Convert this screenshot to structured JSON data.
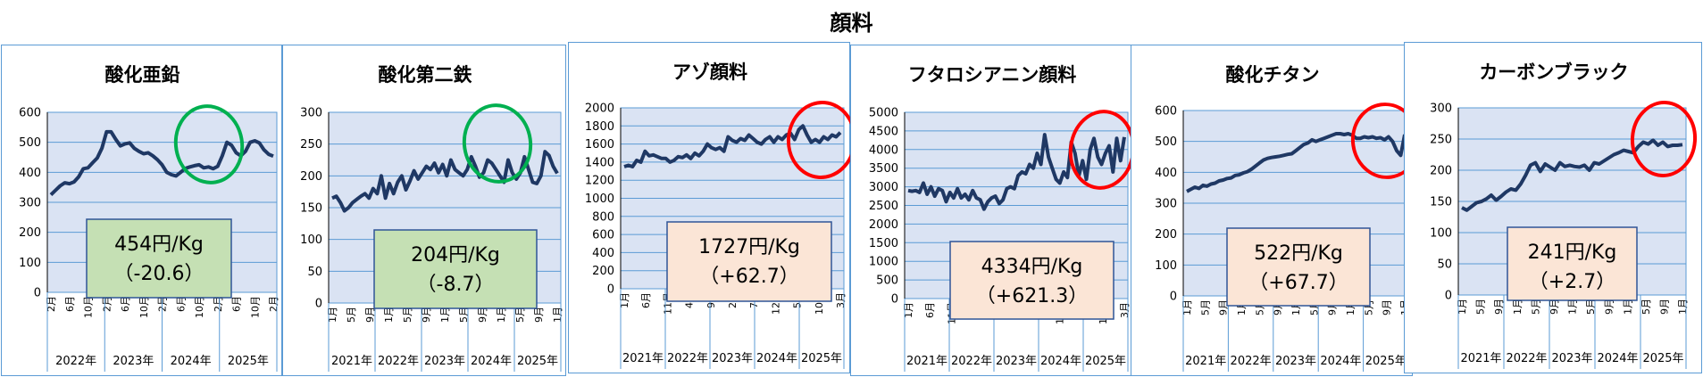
{
  "title": "顔料",
  "colors": {
    "plot_bg": "#dae3f3",
    "line": "#1f3864",
    "grid": "#5b9bd5",
    "green_box": "#c5e0b4",
    "peach_box": "#fbe5d6",
    "box_border": "#2f5597",
    "green_ring": "#00b050",
    "red_ring": "#ff0000"
  },
  "chart_data": [
    {
      "type": "line",
      "title": "酸化亜鉛",
      "ylim": [
        0,
        600
      ],
      "yticks": [
        "0",
        "100",
        "200",
        "300",
        "400",
        "500",
        "600"
      ],
      "xtick_labels": [
        "2月",
        "6月",
        "10月",
        "2月",
        "6月",
        "10月",
        "2月",
        "6月",
        "10月",
        "2月",
        "6月",
        "10月",
        "2月"
      ],
      "years": [
        "2022年",
        "2023年",
        "2024年",
        "2025年"
      ],
      "price": "454円/Kg",
      "change": "（-20.6）",
      "box": "green",
      "ring": "green",
      "values": [
        325,
        340,
        355,
        365,
        362,
        368,
        385,
        412,
        415,
        432,
        448,
        480,
        535,
        535,
        510,
        488,
        495,
        498,
        480,
        470,
        462,
        465,
        455,
        442,
        425,
        400,
        392,
        388,
        400,
        413,
        418,
        422,
        425,
        415,
        418,
        412,
        420,
        455,
        500,
        490,
        465,
        455,
        470,
        500,
        505,
        498,
        475,
        460,
        454
      ]
    },
    {
      "type": "line",
      "title": "酸化第二鉄",
      "ylim": [
        0,
        300
      ],
      "yticks": [
        "0",
        "50",
        "100",
        "150",
        "200",
        "250",
        "300"
      ],
      "xtick_labels": [
        "1月",
        "5月",
        "9月",
        "1月",
        "5月",
        "9月",
        "1月",
        "5月",
        "9月",
        "1月",
        "5月",
        "9月",
        "1月"
      ],
      "years": [
        "2021年",
        "2022年",
        "2023年",
        "2024年",
        "2025年"
      ],
      "price": "204円/Kg",
      "change": "（-8.7）",
      "box": "green",
      "ring": "green",
      "values": [
        165,
        168,
        158,
        145,
        150,
        158,
        163,
        168,
        172,
        165,
        180,
        172,
        200,
        165,
        188,
        172,
        190,
        200,
        178,
        192,
        208,
        195,
        205,
        215,
        210,
        220,
        205,
        218,
        200,
        225,
        210,
        205,
        200,
        210,
        230,
        215,
        198,
        205,
        225,
        220,
        210,
        200,
        190,
        225,
        205,
        195,
        205,
        230,
        210,
        190,
        188,
        200,
        238,
        232,
        215,
        204
      ]
    },
    {
      "type": "line",
      "title": "アゾ顔料",
      "ylim": [
        0,
        2000
      ],
      "yticks": [
        "0",
        "200",
        "400",
        "600",
        "800",
        "1000",
        "1200",
        "1400",
        "1600",
        "1800",
        "2000"
      ],
      "xtick_labels": [
        "1月",
        "6月",
        "11月",
        "4月",
        "9月",
        "2月",
        "7月",
        "12月",
        "5月",
        "10月",
        "3月"
      ],
      "years": [
        "2021年",
        "2022年",
        "2023年",
        "2024年",
        "2025年"
      ],
      "price": "1727円/Kg",
      "change": "（+62.7）",
      "box": "peach",
      "ring": "red",
      "values": [
        1350,
        1365,
        1350,
        1420,
        1400,
        1520,
        1470,
        1480,
        1460,
        1440,
        1440,
        1400,
        1420,
        1460,
        1450,
        1480,
        1440,
        1500,
        1470,
        1520,
        1600,
        1560,
        1540,
        1560,
        1520,
        1680,
        1640,
        1620,
        1660,
        1640,
        1700,
        1660,
        1620,
        1600,
        1650,
        1680,
        1620,
        1680,
        1650,
        1700,
        1720,
        1650,
        1760,
        1800,
        1700,
        1620,
        1650,
        1620,
        1680,
        1650,
        1700,
        1680,
        1727
      ]
    },
    {
      "type": "line",
      "title": "フタロシアニン顔料",
      "ylim": [
        0,
        5000
      ],
      "yticks": [
        "0",
        "500",
        "1000",
        "1500",
        "2000",
        "2500",
        "3000",
        "3500",
        "4000",
        "4500",
        "5000"
      ],
      "xtick_labels": [
        "1月",
        "6月",
        "11月",
        "4月",
        "9月",
        "2月",
        "7月",
        "12月",
        "5月",
        "10月",
        "3月"
      ],
      "years": [
        "2021年",
        "2022年",
        "2023年",
        "2024年",
        "2025年"
      ],
      "price": "4334円/Kg",
      "change": "（+621.3）",
      "box": "peach",
      "ring": "red",
      "values": [
        2900,
        2880,
        2900,
        2850,
        3100,
        2800,
        3000,
        2750,
        2950,
        2900,
        2600,
        2850,
        2700,
        2950,
        2700,
        2800,
        2650,
        2900,
        2700,
        2650,
        2400,
        2600,
        2700,
        2750,
        2550,
        2650,
        2950,
        3000,
        2950,
        3300,
        3400,
        3350,
        3600,
        3500,
        3900,
        3600,
        4400,
        3800,
        3500,
        3200,
        3100,
        3400,
        3250,
        4200,
        3900,
        3300,
        3700,
        3200,
        4000,
        4300,
        3800,
        3600,
        3900,
        4100,
        3400,
        4300,
        3700,
        4334
      ]
    },
    {
      "type": "line",
      "title": "酸化チタン",
      "ylim": [
        0,
        600
      ],
      "yticks": [
        "0",
        "100",
        "200",
        "300",
        "400",
        "500",
        "600"
      ],
      "xtick_labels": [
        "1月",
        "5月",
        "9月",
        "1月",
        "5月",
        "9月",
        "1月",
        "5月",
        "9月",
        "1月",
        "5月",
        "9月",
        "1月"
      ],
      "years": [
        "2021年",
        "2022年",
        "2023年",
        "2024年",
        "2025年"
      ],
      "price": "522円/Kg",
      "change": "（+67.7）",
      "box": "peach",
      "ring": "red",
      "values": [
        338,
        345,
        352,
        348,
        358,
        355,
        362,
        365,
        372,
        375,
        380,
        382,
        390,
        392,
        398,
        402,
        410,
        420,
        430,
        440,
        445,
        448,
        450,
        452,
        455,
        458,
        460,
        470,
        480,
        490,
        495,
        505,
        500,
        505,
        510,
        515,
        520,
        525,
        525,
        522,
        525,
        520,
        510,
        510,
        515,
        512,
        515,
        510,
        512,
        505,
        515,
        500,
        470,
        455,
        522
      ]
    },
    {
      "type": "line",
      "title": "カーボンブラック",
      "ylim": [
        0,
        300
      ],
      "yticks": [
        "0",
        "50",
        "100",
        "150",
        "200",
        "250",
        "300"
      ],
      "xtick_labels": [
        "1月",
        "5月",
        "9月",
        "1月",
        "5月",
        "9月",
        "1月",
        "5月",
        "9月",
        "1月",
        "5月",
        "9月",
        "1月"
      ],
      "years": [
        "2021年",
        "2022年",
        "2023年",
        "2024年",
        "2025年"
      ],
      "price": "241円/Kg",
      "change": "（+2.7）",
      "box": "peach",
      "ring": "red",
      "values": [
        140,
        136,
        142,
        148,
        150,
        154,
        160,
        152,
        158,
        165,
        170,
        168,
        178,
        192,
        208,
        212,
        198,
        210,
        205,
        200,
        212,
        206,
        208,
        206,
        205,
        208,
        200,
        212,
        210,
        215,
        220,
        225,
        228,
        232,
        230,
        228,
        238,
        245,
        242,
        248,
        240,
        245,
        238,
        240,
        240,
        241
      ]
    }
  ]
}
